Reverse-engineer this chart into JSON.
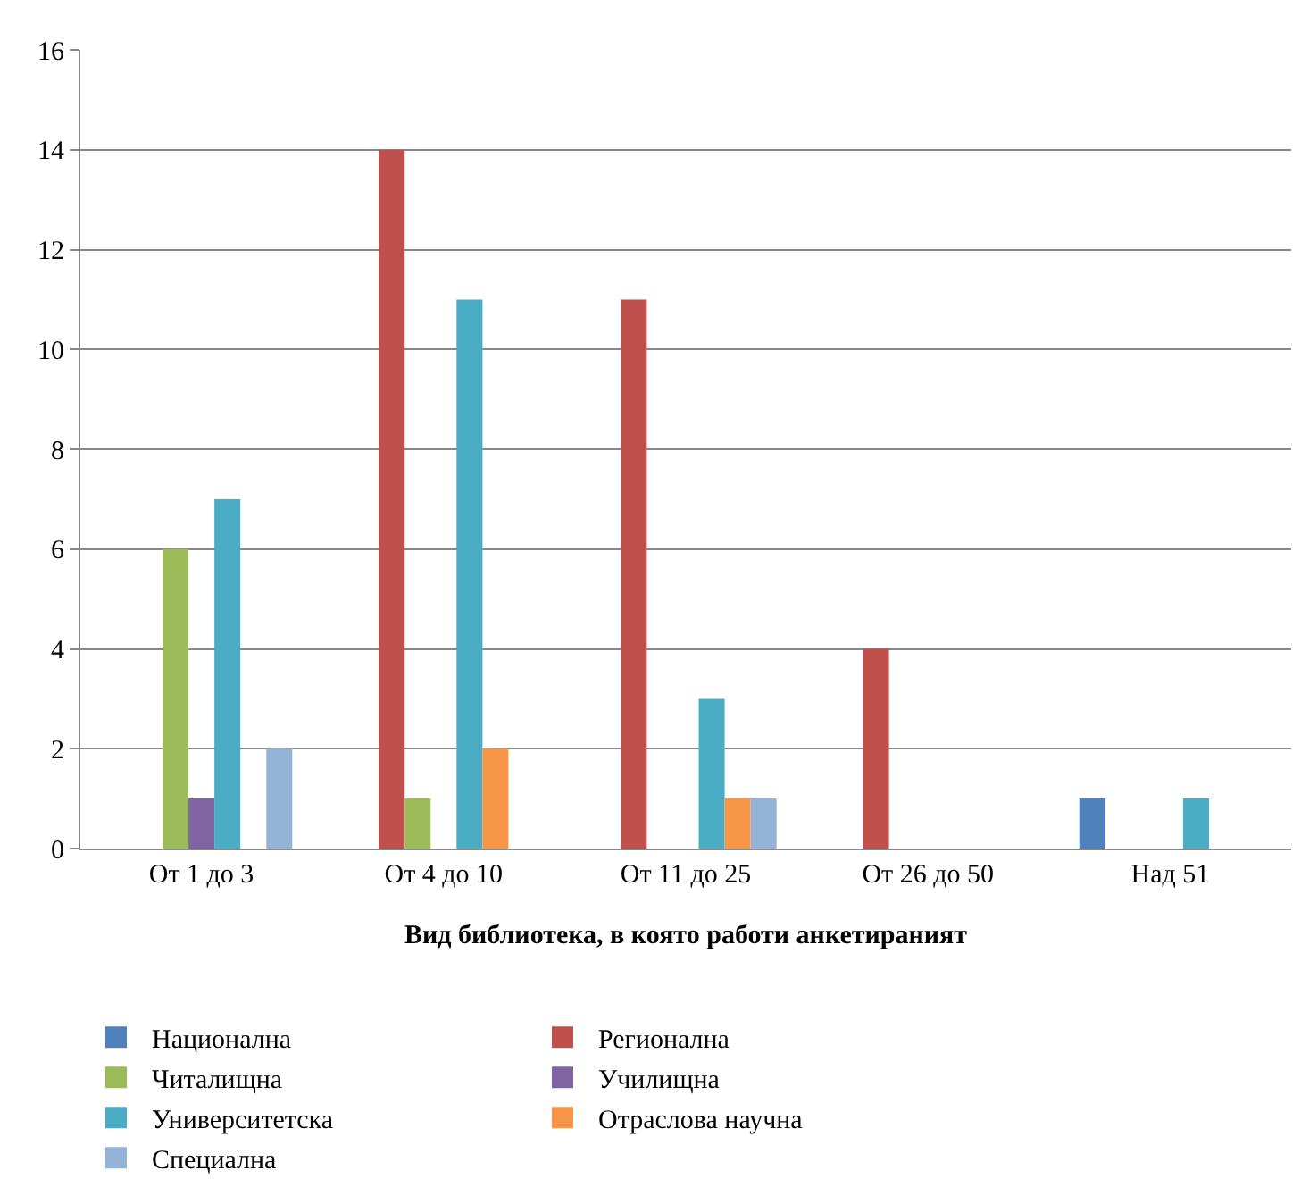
{
  "chart_data": {
    "type": "bar",
    "xlabel": "Вид библиотека, в която работи анкетираният",
    "categories": [
      "От 1 до 3",
      "От 4 до 10",
      "От 11 до 25",
      "От 26 до 50",
      "Над 51"
    ],
    "series": [
      {
        "name": "Национална",
        "color": "#4f81bd",
        "values": [
          0,
          0,
          0,
          0,
          1
        ]
      },
      {
        "name": "Регионална",
        "color": "#c0504d",
        "values": [
          0,
          14,
          11,
          4,
          0
        ]
      },
      {
        "name": "Читалищна",
        "color": "#9bbb59",
        "values": [
          6,
          1,
          0,
          0,
          0
        ]
      },
      {
        "name": "Училищна",
        "color": "#8064a2",
        "values": [
          1,
          0,
          0,
          0,
          0
        ]
      },
      {
        "name": "Университетска",
        "color": "#4bacc6",
        "values": [
          7,
          11,
          3,
          0,
          1
        ]
      },
      {
        "name": "Отраслова научна",
        "color": "#f79646",
        "values": [
          0,
          2,
          1,
          0,
          0
        ]
      },
      {
        "name": "Специална",
        "color": "#95b3d7",
        "values": [
          2,
          0,
          1,
          0,
          0
        ]
      }
    ],
    "ylim": [
      0,
      16
    ],
    "yticks": [
      0,
      2,
      4,
      6,
      8,
      10,
      12,
      14,
      16
    ],
    "grid": "y",
    "legend": "bottom"
  }
}
